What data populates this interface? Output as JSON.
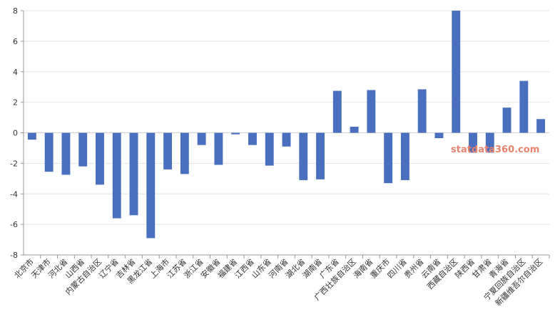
{
  "chart_data": {
    "type": "bar",
    "categories": [
      "北京市",
      "天津市",
      "河北省",
      "山西省",
      "内蒙古自治区",
      "辽宁省",
      "吉林省",
      "黑龙江省",
      "上海市",
      "江苏省",
      "浙江省",
      "安徽省",
      "福建省",
      "江西省",
      "山东省",
      "河南省",
      "湖北省",
      "湖南省",
      "广东省",
      "广西壮族自治区",
      "海南省",
      "重庆市",
      "四川省",
      "贵州省",
      "云南省",
      "西藏自治区",
      "陕西省",
      "甘肃省",
      "青海省",
      "宁夏回族自治区",
      "新疆维吾尔自治区"
    ],
    "values": [
      -0.45,
      -2.55,
      -2.75,
      -2.2,
      -3.4,
      -5.6,
      -5.4,
      -6.9,
      -2.4,
      -2.7,
      -0.8,
      -2.1,
      -0.1,
      -0.8,
      -2.15,
      -0.9,
      -3.1,
      -3.05,
      2.75,
      0.4,
      2.8,
      -3.3,
      -3.1,
      2.85,
      -0.35,
      8.0,
      -1.3,
      -1.3,
      1.65,
      3.4,
      0.9
    ],
    "ylim": [
      -8,
      8
    ],
    "yticks": [
      -8,
      -6,
      -4,
      -2,
      0,
      2,
      4,
      6,
      8
    ],
    "bar_color": "#4a6fbe",
    "grid": true,
    "legend": "none"
  },
  "watermark": "statdata360.com"
}
